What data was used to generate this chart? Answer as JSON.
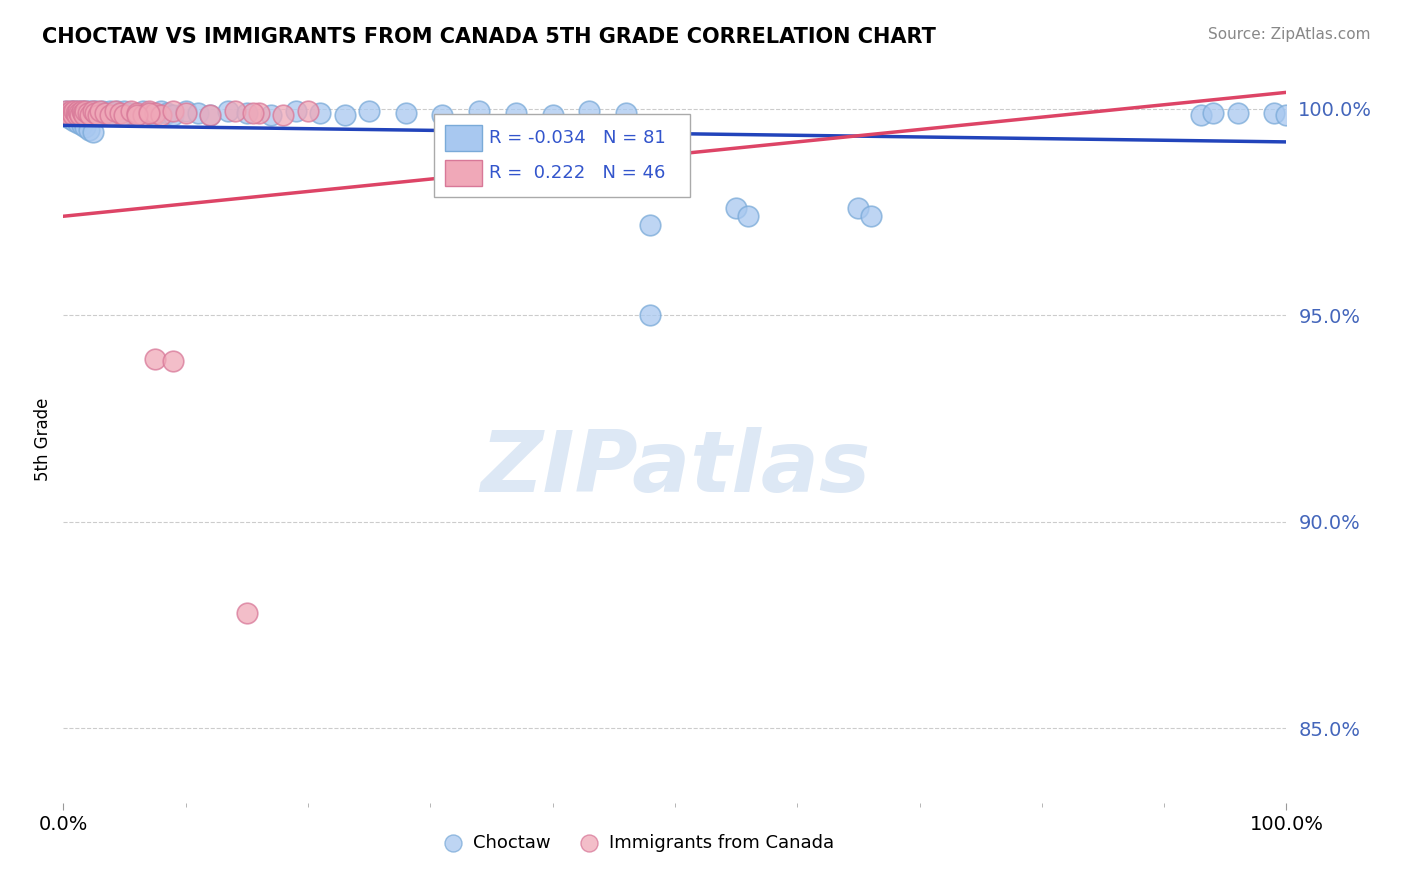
{
  "title": "CHOCTAW VS IMMIGRANTS FROM CANADA 5TH GRADE CORRELATION CHART",
  "source": "Source: ZipAtlas.com",
  "ylabel": "5th Grade",
  "xlim": [
    0.0,
    1.0
  ],
  "ylim": [
    0.832,
    1.008
  ],
  "yticks": [
    0.85,
    0.9,
    0.95,
    1.0
  ],
  "ytick_labels": [
    "85.0%",
    "90.0%",
    "95.0%",
    "100.0%"
  ],
  "xticks": [
    0.0,
    1.0
  ],
  "xtick_labels": [
    "0.0%",
    "100.0%"
  ],
  "R_blue": -0.034,
  "N_blue": 81,
  "R_pink": 0.222,
  "N_pink": 46,
  "blue_color": "#a8c8f0",
  "blue_edge_color": "#7aaad8",
  "pink_color": "#f0a8b8",
  "pink_edge_color": "#d87898",
  "blue_line_color": "#2244bb",
  "pink_line_color": "#dd4466",
  "grid_color": "#cccccc",
  "watermark_text": "ZIPatlas",
  "watermark_color": "#dde8f5",
  "blue_line_y0": 0.996,
  "blue_line_y1": 0.992,
  "pink_line_y0": 0.974,
  "pink_line_y1": 1.004,
  "blue_x": [
    0.002,
    0.004,
    0.005,
    0.006,
    0.007,
    0.008,
    0.009,
    0.01,
    0.011,
    0.012,
    0.013,
    0.014,
    0.015,
    0.016,
    0.017,
    0.018,
    0.019,
    0.02,
    0.021,
    0.022,
    0.023,
    0.024,
    0.025,
    0.026,
    0.027,
    0.028,
    0.03,
    0.032,
    0.034,
    0.036,
    0.038,
    0.04,
    0.042,
    0.044,
    0.046,
    0.048,
    0.05,
    0.055,
    0.06,
    0.065,
    0.07,
    0.075,
    0.08,
    0.085,
    0.09,
    0.1,
    0.11,
    0.12,
    0.135,
    0.15,
    0.17,
    0.19,
    0.21,
    0.23,
    0.25,
    0.28,
    0.31,
    0.34,
    0.37,
    0.4,
    0.43,
    0.46,
    0.003,
    0.006,
    0.009,
    0.012,
    0.015,
    0.018,
    0.021,
    0.024,
    0.55,
    0.56,
    0.48,
    0.65,
    0.66,
    0.93,
    0.94,
    0.96,
    0.99,
    1.0,
    0.48
  ],
  "blue_y": [
    0.9995,
    0.999,
    0.9985,
    0.9995,
    0.999,
    0.9985,
    0.9995,
    0.999,
    0.9985,
    0.9995,
    0.999,
    0.9985,
    0.9995,
    0.999,
    0.9985,
    0.9995,
    0.999,
    0.9985,
    0.9995,
    0.999,
    0.9985,
    0.9995,
    0.999,
    0.9985,
    0.9995,
    0.999,
    0.9985,
    0.9995,
    0.999,
    0.9985,
    0.9995,
    0.999,
    0.9985,
    0.9995,
    0.999,
    0.9985,
    0.9995,
    0.999,
    0.9985,
    0.9995,
    0.999,
    0.9985,
    0.9995,
    0.999,
    0.9985,
    0.9995,
    0.999,
    0.9985,
    0.9995,
    0.999,
    0.9985,
    0.9995,
    0.999,
    0.9985,
    0.9995,
    0.999,
    0.9985,
    0.9995,
    0.999,
    0.9985,
    0.9995,
    0.999,
    0.998,
    0.9975,
    0.997,
    0.9965,
    0.996,
    0.9955,
    0.995,
    0.9945,
    0.976,
    0.974,
    0.95,
    0.976,
    0.974,
    0.9985,
    0.999,
    0.999,
    0.999,
    0.9985,
    0.972
  ],
  "pink_x": [
    0.002,
    0.004,
    0.005,
    0.006,
    0.007,
    0.008,
    0.009,
    0.01,
    0.011,
    0.012,
    0.013,
    0.014,
    0.015,
    0.016,
    0.017,
    0.018,
    0.02,
    0.022,
    0.024,
    0.026,
    0.028,
    0.03,
    0.034,
    0.038,
    0.042,
    0.046,
    0.05,
    0.055,
    0.06,
    0.065,
    0.07,
    0.075,
    0.08,
    0.09,
    0.1,
    0.12,
    0.14,
    0.16,
    0.18,
    0.2,
    0.075,
    0.09,
    0.15,
    0.155,
    0.06,
    0.07
  ],
  "pink_y": [
    0.9995,
    0.999,
    0.9985,
    0.9995,
    0.999,
    0.9985,
    0.9995,
    0.999,
    0.9985,
    0.9995,
    0.999,
    0.9985,
    0.9995,
    0.999,
    0.9985,
    0.9995,
    0.999,
    0.9985,
    0.9995,
    0.999,
    0.9985,
    0.9995,
    0.999,
    0.9985,
    0.9995,
    0.999,
    0.9985,
    0.9995,
    0.999,
    0.9985,
    0.9995,
    0.999,
    0.9985,
    0.9995,
    0.999,
    0.9985,
    0.9995,
    0.999,
    0.9985,
    0.9995,
    0.9395,
    0.939,
    0.878,
    0.999,
    0.9985,
    0.999
  ]
}
